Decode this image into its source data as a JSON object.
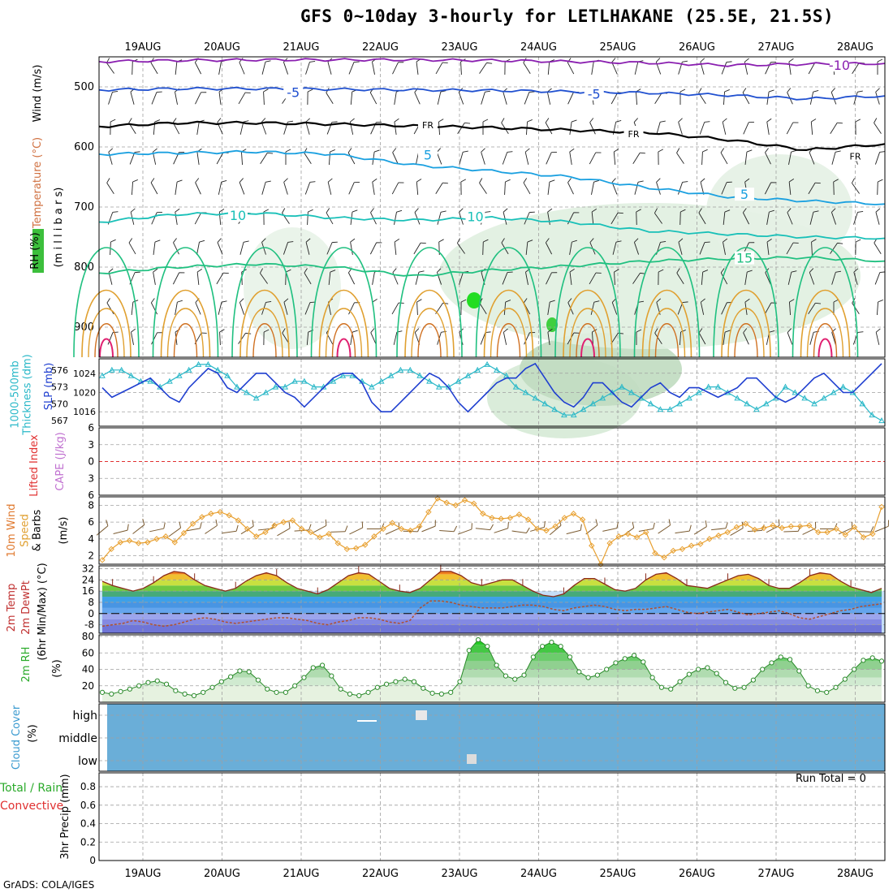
{
  "page": {
    "title": "GFS 0~10day 3-hourly for LETLHAKANE (25.5E, 21.5S)",
    "credit": "GrADS: COLA/IGES",
    "run_total": "Run Total = 0"
  },
  "colors": {
    "frame": "#000000",
    "grid": "#a0a0a0",
    "slp": "#1f3fd0",
    "thickness": "#2ab8c8",
    "wind_speed": "#e8a030",
    "wind_barb": "#7a5a30",
    "dewpoint": "#b05030",
    "rh_fill": "#3cbf3c",
    "cloud_fill": "#6aaed8",
    "lifted_zero": "#e03030",
    "iso_purple": "#8a1fb0",
    "iso_blue": "#2050d0",
    "iso_cyan": "#1aa0e0",
    "iso_teal": "#18c0b8",
    "iso_green": "#20c080",
    "iso_orange": "#e0a030",
    "iso_red": "#e02070"
  },
  "chart_data": [
    {
      "panel": "upper_air",
      "type": "heatmap",
      "xlabel_dates": [
        "19AUG",
        "20AUG",
        "21AUG",
        "22AUG",
        "23AUG",
        "24AUG",
        "25AUG",
        "26AUG",
        "27AUG",
        "28AUG"
      ],
      "ylabel_left": [
        "RH (%)",
        "Temperature (°C)",
        "Wind (m/s)"
      ],
      "ylabel_inner": "(m i l l i b a r s)",
      "y_ticks": [
        500,
        600,
        700,
        800,
        900
      ],
      "ylim": [
        950,
        450
      ],
      "contour_labels": [
        {
          "text": "-10",
          "x_day": 8.8,
          "p": 465
        },
        {
          "text": "-5",
          "x_day": 1.9,
          "p": 510
        },
        {
          "text": "-5",
          "x_day": 5.7,
          "p": 513
        },
        {
          "text": "FR",
          "x_day": 3.6,
          "p": 562
        },
        {
          "text": "FR",
          "x_day": 6.2,
          "p": 577
        },
        {
          "text": "FR",
          "x_day": 9.0,
          "p": 614
        },
        {
          "text": "5",
          "x_day": 3.6,
          "p": 614
        },
        {
          "text": "5",
          "x_day": 7.6,
          "p": 680
        },
        {
          "text": "10",
          "x_day": 1.2,
          "p": 715
        },
        {
          "text": "10",
          "x_day": 4.2,
          "p": 717
        },
        {
          "text": "15",
          "x_day": 7.6,
          "p": 786
        }
      ],
      "isotherms": [
        {
          "name": "-10",
          "color_key": "iso_purple",
          "p": [
            458,
            456,
            455,
            455,
            455,
            456,
            458,
            460,
            464,
            462,
            461
          ]
        },
        {
          "name": "-5",
          "color_key": "iso_blue",
          "p": [
            505,
            503,
            503,
            504,
            505,
            506,
            508,
            510,
            514,
            520,
            515
          ]
        },
        {
          "name": "FR",
          "color_key": "frame",
          "p": [
            566,
            560,
            560,
            562,
            565,
            568,
            572,
            576,
            588,
            605,
            595
          ]
        },
        {
          "name": "5",
          "color_key": "iso_cyan",
          "p": [
            612,
            610,
            608,
            612,
            630,
            640,
            650,
            668,
            683,
            690,
            695
          ]
        },
        {
          "name": "10",
          "color_key": "iso_teal",
          "p": [
            725,
            712,
            710,
            718,
            722,
            718,
            725,
            740,
            745,
            750,
            752
          ]
        },
        {
          "name": "15",
          "color_key": "iso_green",
          "p": [
            810,
            800,
            795,
            800,
            815,
            805,
            798,
            790,
            786,
            784,
            790
          ]
        }
      ]
    },
    {
      "panel": "slp_thickness",
      "type": "line",
      "ylabel": [
        "1000-500mb",
        "Thickness (dm)",
        "SLP (mb)"
      ],
      "left_ticks": [
        576,
        573,
        570,
        567
      ],
      "right_ticks": [
        1024,
        1020,
        1016
      ],
      "series": [
        {
          "name": "SLP (mb)",
          "axis": "right",
          "color_key": "slp",
          "values": [
            1021,
            1019,
            1020,
            1021,
            1022,
            1023,
            1021,
            1019,
            1018,
            1021,
            1023,
            1025,
            1024,
            1021,
            1020,
            1022,
            1024,
            1024,
            1022,
            1020,
            1019,
            1017,
            1019,
            1021,
            1023,
            1024,
            1024,
            1022,
            1018,
            1016,
            1016,
            1018,
            1020,
            1022,
            1024,
            1023,
            1021,
            1018,
            1016,
            1018,
            1020,
            1022,
            1023,
            1023,
            1025,
            1026,
            1023,
            1020,
            1018,
            1017,
            1019,
            1022,
            1022,
            1020,
            1018,
            1017,
            1019,
            1021,
            1022,
            1020,
            1019,
            1021,
            1021,
            1020,
            1019,
            1020,
            1021,
            1023,
            1023,
            1021,
            1019,
            1018,
            1019,
            1021,
            1023,
            1024,
            1022,
            1020,
            1020,
            1022,
            1024,
            1026
          ]
        },
        {
          "name": "Thickness (dm)",
          "axis": "left",
          "color_key": "thickness",
          "values": [
            575,
            576,
            576,
            575,
            574,
            574,
            573,
            574,
            575,
            576,
            577,
            577,
            576,
            575,
            573,
            572,
            571,
            572,
            573,
            573,
            574,
            574,
            573,
            573,
            574,
            575,
            575,
            574,
            573,
            574,
            575,
            576,
            576,
            575,
            574,
            573,
            573,
            574,
            575,
            576,
            577,
            576,
            575,
            573,
            572,
            571,
            570,
            569,
            568,
            568,
            569,
            570,
            571,
            572,
            573,
            572,
            571,
            570,
            569,
            569,
            570,
            571,
            572,
            573,
            573,
            572,
            571,
            570,
            569,
            570,
            571,
            573,
            572,
            571,
            570,
            571,
            572,
            573,
            572,
            570,
            568,
            567
          ]
        }
      ]
    },
    {
      "panel": "lifted_cape",
      "type": "line",
      "ylabel": [
        "Lifted Index",
        "CAPE (J/kg)"
      ],
      "left_ticks": [
        -6,
        -3,
        0,
        3,
        6
      ],
      "series": [
        {
          "name": "Lifted Index",
          "axis": "left",
          "color_key": "lifted_zero",
          "values": [
            0
          ]
        }
      ]
    },
    {
      "panel": "wind10m",
      "type": "line",
      "ylabel": [
        "10m Wind",
        "Speed",
        "& Barbs",
        "(m/s)"
      ],
      "y_ticks": [
        2,
        4,
        6,
        8
      ],
      "ylim": [
        1,
        9
      ],
      "series": [
        {
          "name": "10m Wind Speed",
          "color_key": "wind_speed",
          "values": [
            1.5,
            2.8,
            3.6,
            3.8,
            3.5,
            3.6,
            4.0,
            4.3,
            3.6,
            4.7,
            5.8,
            6.6,
            7.0,
            7.2,
            6.8,
            6.2,
            5.2,
            4.3,
            4.8,
            5.6,
            6.0,
            6.2,
            5.2,
            4.8,
            4.2,
            4.6,
            3.5,
            2.8,
            2.9,
            3.3,
            4.3,
            5.2,
            5.9,
            5.2,
            5.0,
            5.5,
            7.2,
            8.8,
            8.3,
            8.0,
            8.6,
            8.2,
            7.0,
            6.5,
            6.4,
            6.5,
            6.9,
            6.3,
            5.2,
            5.0,
            5.5,
            6.5,
            7.0,
            6.3,
            3.2,
            1.0,
            3.5,
            4.3,
            4.6,
            4.2,
            4.8,
            2.3,
            1.8,
            2.6,
            2.8,
            3.2,
            3.4,
            4.0,
            4.4,
            4.8,
            5.4,
            5.8,
            5.1,
            5.3,
            5.6,
            5.3,
            5.5,
            5.5,
            5.6,
            4.8,
            4.8,
            5.2,
            4.5,
            5.4,
            4.2,
            4.6,
            7.8
          ]
        }
      ]
    },
    {
      "panel": "temp_dewpoint",
      "type": "area",
      "ylabel": [
        "2m Temp",
        "2m DewPt",
        "(6hr Min/Max) (°C)"
      ],
      "y_ticks": [
        32,
        24,
        16,
        8,
        0,
        -8
      ],
      "ylim": [
        -14,
        34
      ],
      "series": [
        {
          "name": "2m Temp",
          "values": [
            23,
            20,
            18,
            16,
            18,
            22,
            27,
            30,
            29,
            24,
            20,
            18,
            16,
            18,
            23,
            27,
            29,
            27,
            22,
            18,
            16,
            14,
            17,
            22,
            27,
            29,
            28,
            23,
            18,
            16,
            15,
            18,
            24,
            30,
            30,
            27,
            22,
            20,
            22,
            24,
            24,
            20,
            16,
            13,
            12,
            14,
            20,
            25,
            25,
            21,
            17,
            16,
            18,
            24,
            28,
            29,
            25,
            20,
            19,
            18,
            21,
            24,
            27,
            28,
            25,
            20,
            18,
            18,
            22,
            27,
            29,
            28,
            23,
            19,
            17,
            15,
            18
          ]
        },
        {
          "name": "2m DewPt",
          "color_key": "dewpoint",
          "values": [
            -9,
            -8,
            -7,
            -5,
            -6,
            -8,
            -9,
            -8,
            -6,
            -4,
            -3,
            -4,
            -6,
            -7,
            -6,
            -5,
            -4,
            -3,
            -3,
            -4,
            -5,
            -7,
            -8,
            -6,
            -5,
            -3,
            -3,
            -4,
            -6,
            -7,
            -5,
            4,
            9,
            9,
            8,
            6,
            5,
            4,
            4,
            4,
            5,
            6,
            6,
            5,
            3,
            2,
            4,
            5,
            6,
            5,
            3,
            2,
            3,
            3,
            4,
            5,
            3,
            1,
            0,
            1,
            2,
            3,
            1,
            -1,
            0,
            1,
            2,
            0,
            -3,
            -4,
            -2,
            0,
            2,
            3,
            5,
            6,
            7
          ]
        }
      ]
    },
    {
      "panel": "rh2m",
      "type": "area",
      "ylabel": [
        "2m RH",
        "(%)"
      ],
      "y_ticks": [
        20,
        40,
        60,
        80
      ],
      "ylim": [
        0,
        82
      ],
      "series": [
        {
          "name": "2m RH",
          "color_key": "rh_fill",
          "values": [
            12,
            10,
            13,
            16,
            20,
            24,
            26,
            22,
            14,
            10,
            8,
            12,
            18,
            25,
            31,
            38,
            37,
            27,
            16,
            12,
            12,
            20,
            30,
            42,
            45,
            32,
            16,
            10,
            8,
            12,
            18,
            22,
            25,
            28,
            25,
            17,
            11,
            10,
            12,
            25,
            63,
            76,
            68,
            45,
            32,
            28,
            33,
            55,
            68,
            73,
            68,
            55,
            37,
            30,
            33,
            40,
            48,
            53,
            57,
            49,
            30,
            18,
            16,
            25,
            34,
            40,
            42,
            35,
            24,
            17,
            18,
            27,
            40,
            48,
            55,
            52,
            38,
            20,
            14,
            12,
            18,
            28,
            40,
            51,
            54,
            50
          ]
        }
      ]
    },
    {
      "panel": "cloud_cover",
      "type": "heatmap",
      "ylabel": [
        "Cloud Cover",
        "(%)"
      ],
      "levels": [
        "high",
        "middle",
        "low"
      ]
    },
    {
      "panel": "precip",
      "type": "bar",
      "ylabel": [
        "Total / Rain",
        "Convective",
        "3hr Precip (mm)"
      ],
      "y_ticks": [
        0,
        0.2,
        0.4,
        0.6,
        0.8
      ],
      "ylim": [
        0,
        0.95
      ],
      "values": []
    }
  ]
}
